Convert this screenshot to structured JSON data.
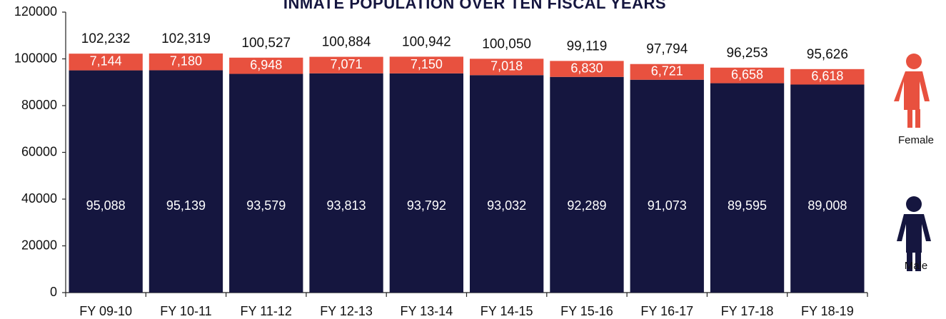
{
  "chart_data": {
    "type": "stacked_bar",
    "title": "INMATE POPULATION OVER TEN FISCAL YEARS",
    "categories": [
      "FY 09-10",
      "FY 10-11",
      "FY 11-12",
      "FY 12-13",
      "FY 13-14",
      "FY 14-15",
      "FY 15-16",
      "FY 16-17",
      "FY 17-18",
      "FY 18-19"
    ],
    "series": [
      {
        "name": "Male",
        "color": "#15163f",
        "values": [
          95088,
          95139,
          93579,
          93813,
          93792,
          93032,
          92289,
          91073,
          89595,
          89008
        ],
        "value_labels": [
          "95,088",
          "95,139",
          "93,579",
          "93,813",
          "93,792",
          "93,032",
          "92,289",
          "91,073",
          "89,595",
          "89,008"
        ]
      },
      {
        "name": "Female",
        "color": "#e8513f",
        "values": [
          7144,
          7180,
          6948,
          7071,
          7150,
          7018,
          6830,
          6721,
          6658,
          6618
        ],
        "value_labels": [
          "7,144",
          "7,180",
          "6,948",
          "7,071",
          "7,150",
          "7,018",
          "6,830",
          "6,721",
          "6,658",
          "6,618"
        ]
      }
    ],
    "totals": [
      102232,
      102319,
      100527,
      100884,
      100942,
      100050,
      99119,
      97794,
      96253,
      95626
    ],
    "total_labels": [
      "102,232",
      "102,319",
      "100,527",
      "100,884",
      "100,942",
      "100,050",
      "99,119",
      "97,794",
      "96,253",
      "95,626"
    ],
    "ylim": [
      0,
      120000
    ],
    "yticks": [
      0,
      20000,
      40000,
      60000,
      80000,
      100000,
      120000
    ]
  }
}
